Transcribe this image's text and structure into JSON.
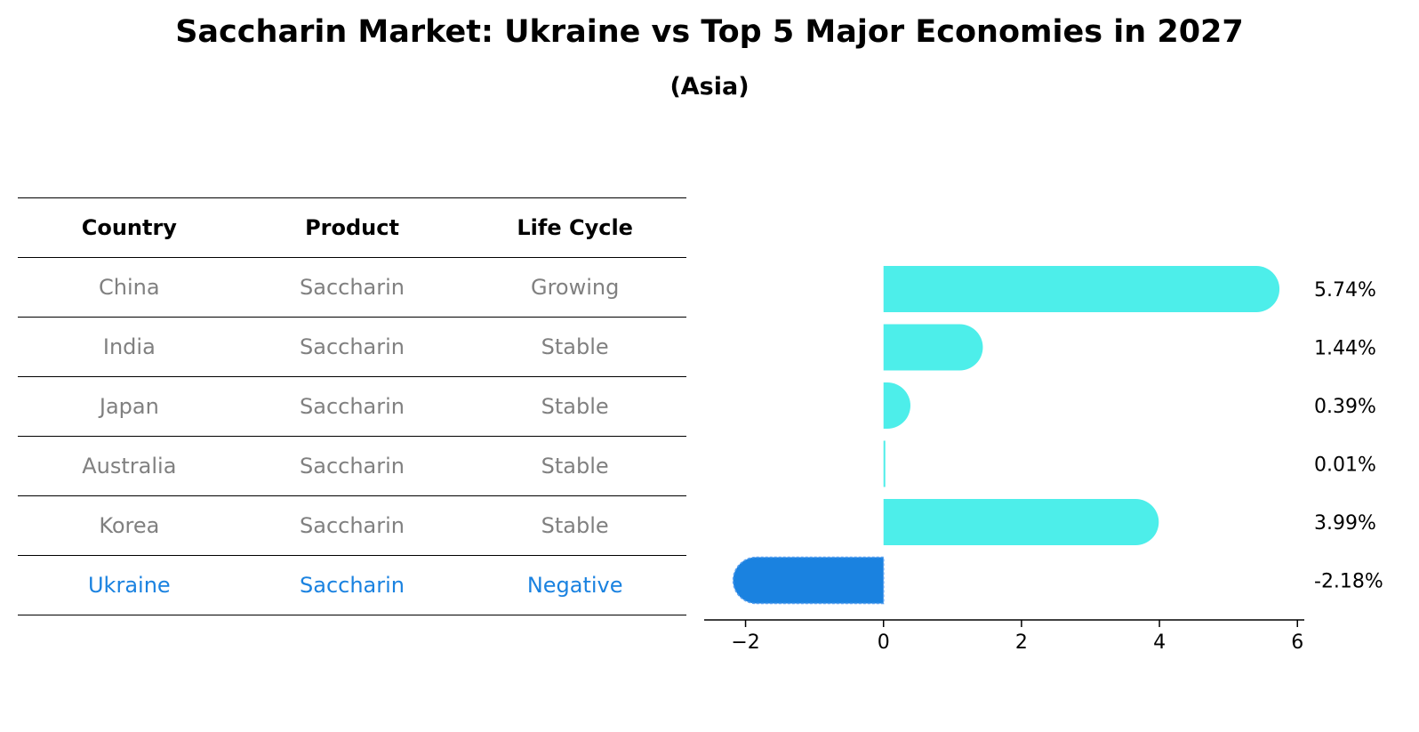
{
  "title": "Saccharin Market: Ukraine vs Top 5 Major Economies in 2027",
  "subtitle": "(Asia)",
  "table": {
    "headers": [
      "Country",
      "Product",
      "Life Cycle"
    ],
    "rows": [
      [
        "China",
        "Saccharin",
        "Growing"
      ],
      [
        "India",
        "Saccharin",
        "Stable"
      ],
      [
        "Japan",
        "Saccharin",
        "Stable"
      ],
      [
        "Australia",
        "Saccharin",
        "Stable"
      ],
      [
        "Korea",
        "Saccharin",
        "Stable"
      ],
      [
        "Ukraine",
        "Saccharin",
        "Negative"
      ]
    ]
  },
  "colors": {
    "bar": "#4deeea",
    "highlight": "#1a82e0",
    "table_text": "#808080"
  },
  "chart_data": {
    "type": "bar",
    "orientation": "horizontal",
    "categories": [
      "China",
      "India",
      "Japan",
      "Australia",
      "Korea",
      "Ukraine"
    ],
    "values": [
      5.74,
      1.44,
      0.39,
      0.01,
      3.99,
      -2.18
    ],
    "value_labels": [
      "5.74%",
      "1.44%",
      "0.39%",
      "0.01%",
      "3.99%",
      "-2.18%"
    ],
    "highlight": "Ukraine",
    "xlim": [
      -2.6,
      6.1
    ],
    "xticks": [
      -2,
      0,
      2,
      4,
      6
    ],
    "xtick_labels": [
      "−2",
      "0",
      "2",
      "4",
      "6"
    ],
    "grid": false
  }
}
